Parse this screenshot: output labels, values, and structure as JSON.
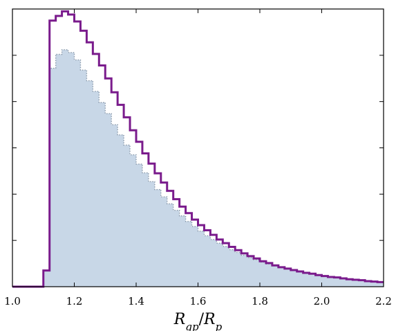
{
  "chart_data": {
    "type": "histogram",
    "xlabel": "R_gp/R_p",
    "xlim": [
      1.0,
      2.2
    ],
    "ylim": [
      0,
      6
    ],
    "x_tick_labels": [
      "1.0",
      "1.2",
      "1.4",
      "1.6",
      "1.8",
      "2.0",
      "2.2"
    ],
    "x_ticks": [
      1.0,
      1.2,
      1.4,
      1.6,
      1.8,
      2.0,
      2.2
    ],
    "y_ticks": [
      1,
      2,
      3,
      4,
      5,
      6
    ],
    "grid": false,
    "bin_edges": [
      1.0,
      1.02,
      1.04,
      1.06,
      1.08,
      1.1,
      1.12,
      1.14,
      1.16,
      1.18,
      1.2,
      1.22,
      1.24,
      1.26,
      1.28,
      1.3,
      1.32,
      1.34,
      1.36,
      1.38,
      1.4,
      1.42,
      1.44,
      1.46,
      1.48,
      1.5,
      1.52,
      1.54,
      1.56,
      1.58,
      1.6,
      1.62,
      1.64,
      1.66,
      1.68,
      1.7,
      1.72,
      1.74,
      1.76,
      1.78,
      1.8,
      1.82,
      1.84,
      1.86,
      1.88,
      1.9,
      1.92,
      1.94,
      1.96,
      1.98,
      2.0,
      2.02,
      2.04,
      2.06,
      2.08,
      2.1,
      2.12,
      2.14,
      2.16,
      2.18,
      2.2
    ],
    "series": [
      {
        "style": "step-line",
        "color": "#7a1b8c",
        "values": [
          0,
          0,
          0,
          0,
          0,
          0.35,
          5.75,
          5.85,
          5.95,
          5.88,
          5.73,
          5.53,
          5.28,
          5.03,
          4.78,
          4.5,
          4.2,
          3.93,
          3.66,
          3.38,
          3.13,
          2.88,
          2.66,
          2.45,
          2.25,
          2.07,
          1.89,
          1.73,
          1.59,
          1.45,
          1.33,
          1.22,
          1.12,
          1.02,
          0.94,
          0.86,
          0.79,
          0.72,
          0.66,
          0.61,
          0.55,
          0.51,
          0.46,
          0.42,
          0.39,
          0.36,
          0.33,
          0.3,
          0.28,
          0.25,
          0.23,
          0.21,
          0.2,
          0.18,
          0.16,
          0.15,
          0.14,
          0.12,
          0.11,
          0.1
        ]
      },
      {
        "style": "filled-step",
        "color": "#c8d7e7",
        "edge_color": "#8a99aa",
        "values": [
          0,
          0,
          0,
          0,
          0,
          0.35,
          4.72,
          5.02,
          5.12,
          5.06,
          4.9,
          4.68,
          4.45,
          4.22,
          3.98,
          3.74,
          3.5,
          3.28,
          3.06,
          2.85,
          2.65,
          2.46,
          2.27,
          2.1,
          1.94,
          1.79,
          1.65,
          1.53,
          1.41,
          1.3,
          1.2,
          1.1,
          1.02,
          0.94,
          0.87,
          0.8,
          0.74,
          0.68,
          0.63,
          0.58,
          0.53,
          0.49,
          0.45,
          0.42,
          0.39,
          0.35,
          0.33,
          0.3,
          0.28,
          0.26,
          0.24,
          0.22,
          0.2,
          0.18,
          0.17,
          0.15,
          0.14,
          0.13,
          0.12,
          0.11
        ]
      }
    ]
  }
}
